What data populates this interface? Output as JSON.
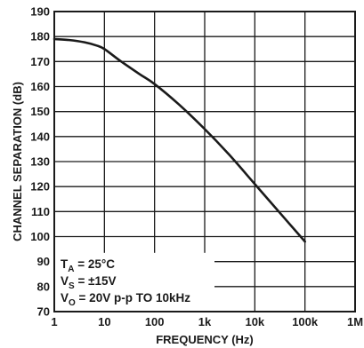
{
  "chart_data": {
    "type": "line",
    "xlabel": "FREQUENCY (Hz)",
    "ylabel": "CHANNEL SEPARATION (dB)",
    "xscale": "log",
    "xlim": [
      1,
      1000000
    ],
    "ylim": [
      70,
      190
    ],
    "grid": true,
    "x_ticks": [
      {
        "value": 1,
        "label": "1"
      },
      {
        "value": 10,
        "label": "10"
      },
      {
        "value": 100,
        "label": "100"
      },
      {
        "value": 1000,
        "label": "1k"
      },
      {
        "value": 10000,
        "label": "10k"
      },
      {
        "value": 100000,
        "label": "100k"
      },
      {
        "value": 1000000,
        "label": "1M"
      }
    ],
    "y_ticks": [
      {
        "value": 70,
        "label": "70"
      },
      {
        "value": 80,
        "label": "80"
      },
      {
        "value": 90,
        "label": "90"
      },
      {
        "value": 100,
        "label": "100"
      },
      {
        "value": 110,
        "label": "110"
      },
      {
        "value": 120,
        "label": "120"
      },
      {
        "value": 130,
        "label": "130"
      },
      {
        "value": 140,
        "label": "140"
      },
      {
        "value": 150,
        "label": "150"
      },
      {
        "value": 160,
        "label": "160"
      },
      {
        "value": 170,
        "label": "170"
      },
      {
        "value": 180,
        "label": "180"
      },
      {
        "value": 190,
        "label": "190"
      }
    ],
    "series": [
      {
        "x": [
          1,
          2,
          4,
          7,
          10,
          20,
          50,
          100,
          300,
          1000,
          3000,
          10000,
          30000,
          100000
        ],
        "y": [
          179,
          178.6,
          177.7,
          176.4,
          175,
          170.5,
          165,
          161,
          153,
          143,
          133,
          121,
          110,
          98
        ]
      }
    ],
    "annotations": [
      {
        "main": "T",
        "sub": "A",
        "rest": " = 25°C"
      },
      {
        "main": "V",
        "sub": "S",
        "rest": " = ±15V"
      },
      {
        "main": "V",
        "sub": "O",
        "rest": " = 20V p-p TO 10kHz"
      }
    ],
    "colors": {
      "line": "#1a1a1a",
      "grid": "#1a1a1a",
      "background": "#ffffff"
    }
  }
}
